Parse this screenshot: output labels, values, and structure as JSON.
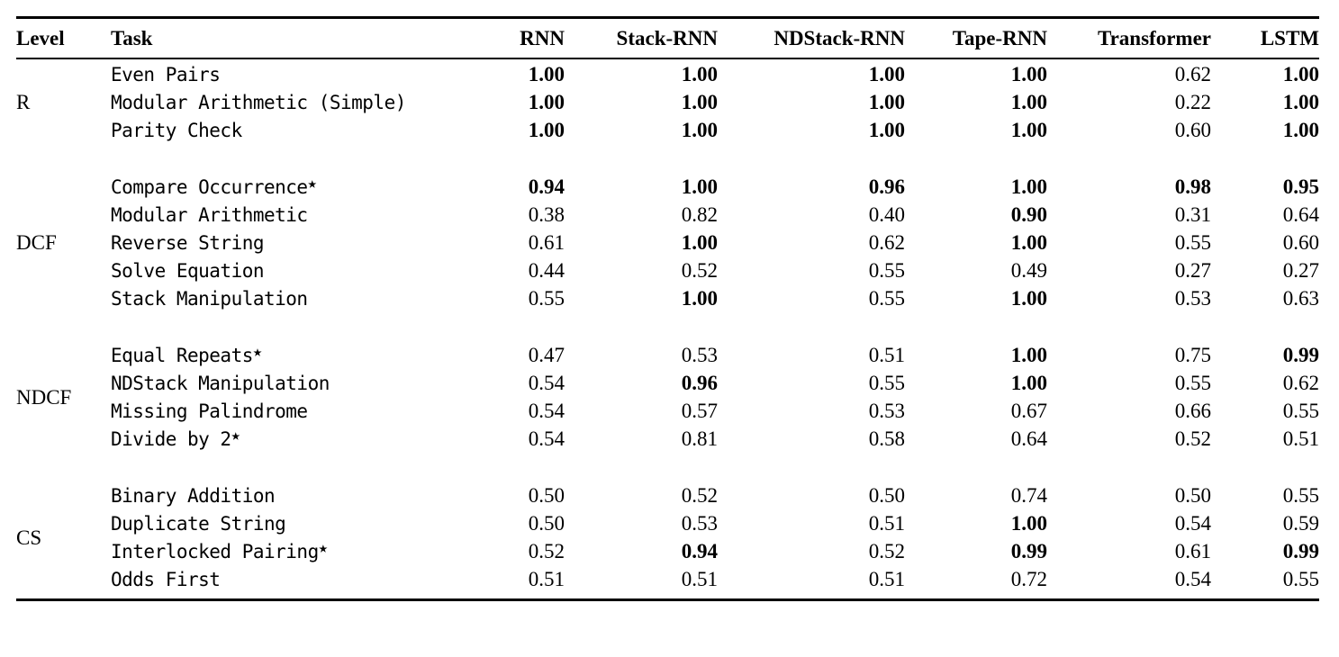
{
  "table": {
    "star_symbol": "★",
    "columns": [
      "Level",
      "Task",
      "RNN",
      "Stack-RNN",
      "NDStack-RNN",
      "Tape-RNN",
      "Transformer",
      "LSTM"
    ],
    "groups": [
      {
        "level": "R",
        "rows": [
          {
            "task": "Even Pairs",
            "star": false,
            "values": [
              "1.00",
              "1.00",
              "1.00",
              "1.00",
              "0.62",
              "1.00"
            ],
            "bold": [
              true,
              true,
              true,
              true,
              false,
              true
            ]
          },
          {
            "task": "Modular Arithmetic (Simple)",
            "star": false,
            "values": [
              "1.00",
              "1.00",
              "1.00",
              "1.00",
              "0.22",
              "1.00"
            ],
            "bold": [
              true,
              true,
              true,
              true,
              false,
              true
            ]
          },
          {
            "task": "Parity Check",
            "star": false,
            "values": [
              "1.00",
              "1.00",
              "1.00",
              "1.00",
              "0.60",
              "1.00"
            ],
            "bold": [
              true,
              true,
              true,
              true,
              false,
              true
            ]
          }
        ]
      },
      {
        "level": "DCF",
        "rows": [
          {
            "task": "Compare Occurrence",
            "star": true,
            "values": [
              "0.94",
              "1.00",
              "0.96",
              "1.00",
              "0.98",
              "0.95"
            ],
            "bold": [
              true,
              true,
              true,
              true,
              true,
              true
            ]
          },
          {
            "task": "Modular Arithmetic",
            "star": false,
            "values": [
              "0.38",
              "0.82",
              "0.40",
              "0.90",
              "0.31",
              "0.64"
            ],
            "bold": [
              false,
              false,
              false,
              true,
              false,
              false
            ]
          },
          {
            "task": "Reverse String",
            "star": false,
            "values": [
              "0.61",
              "1.00",
              "0.62",
              "1.00",
              "0.55",
              "0.60"
            ],
            "bold": [
              false,
              true,
              false,
              true,
              false,
              false
            ]
          },
          {
            "task": "Solve Equation",
            "star": false,
            "values": [
              "0.44",
              "0.52",
              "0.55",
              "0.49",
              "0.27",
              "0.27"
            ],
            "bold": [
              false,
              false,
              false,
              false,
              false,
              false
            ]
          },
          {
            "task": "Stack Manipulation",
            "star": false,
            "values": [
              "0.55",
              "1.00",
              "0.55",
              "1.00",
              "0.53",
              "0.63"
            ],
            "bold": [
              false,
              true,
              false,
              true,
              false,
              false
            ]
          }
        ]
      },
      {
        "level": "NDCF",
        "rows": [
          {
            "task": "Equal Repeats",
            "star": true,
            "values": [
              "0.47",
              "0.53",
              "0.51",
              "1.00",
              "0.75",
              "0.99"
            ],
            "bold": [
              false,
              false,
              false,
              true,
              false,
              true
            ]
          },
          {
            "task": "NDStack Manipulation",
            "star": false,
            "values": [
              "0.54",
              "0.96",
              "0.55",
              "1.00",
              "0.55",
              "0.62"
            ],
            "bold": [
              false,
              true,
              false,
              true,
              false,
              false
            ]
          },
          {
            "task": "Missing Palindrome",
            "star": false,
            "values": [
              "0.54",
              "0.57",
              "0.53",
              "0.67",
              "0.66",
              "0.55"
            ],
            "bold": [
              false,
              false,
              false,
              false,
              false,
              false
            ]
          },
          {
            "task": "Divide by 2",
            "star": true,
            "values": [
              "0.54",
              "0.81",
              "0.58",
              "0.64",
              "0.52",
              "0.51"
            ],
            "bold": [
              false,
              false,
              false,
              false,
              false,
              false
            ]
          }
        ]
      },
      {
        "level": "CS",
        "rows": [
          {
            "task": "Binary Addition",
            "star": false,
            "values": [
              "0.50",
              "0.52",
              "0.50",
              "0.74",
              "0.50",
              "0.55"
            ],
            "bold": [
              false,
              false,
              false,
              false,
              false,
              false
            ]
          },
          {
            "task": "Duplicate String",
            "star": false,
            "values": [
              "0.50",
              "0.53",
              "0.51",
              "1.00",
              "0.54",
              "0.59"
            ],
            "bold": [
              false,
              false,
              false,
              true,
              false,
              false
            ]
          },
          {
            "task": "Interlocked Pairing",
            "star": true,
            "values": [
              "0.52",
              "0.94",
              "0.52",
              "0.99",
              "0.61",
              "0.99"
            ],
            "bold": [
              false,
              true,
              false,
              true,
              false,
              true
            ]
          },
          {
            "task": "Odds First",
            "star": false,
            "values": [
              "0.51",
              "0.51",
              "0.51",
              "0.72",
              "0.54",
              "0.55"
            ],
            "bold": [
              false,
              false,
              false,
              false,
              false,
              false
            ]
          }
        ]
      }
    ]
  }
}
